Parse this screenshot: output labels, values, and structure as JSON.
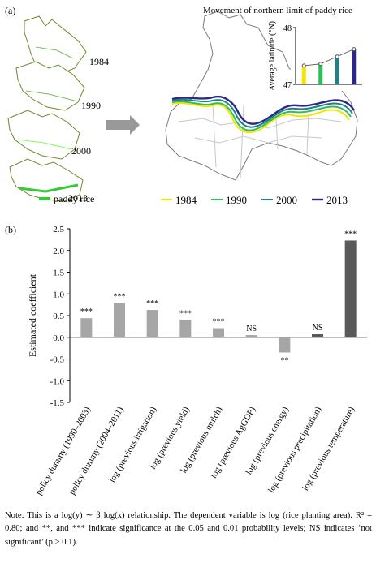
{
  "panel_a": {
    "label": "(a)",
    "inset_title": "Movement of northern limit of paddy rice",
    "small_maps": [
      "1984",
      "1990",
      "2000",
      "2013"
    ],
    "legend_paddy": "paddy rice",
    "legend_lines": [
      {
        "year": "1984",
        "color": "#f2e600"
      },
      {
        "year": "1990",
        "color": "#2fbf5a"
      },
      {
        "year": "2000",
        "color": "#1f7f8a"
      },
      {
        "year": "2013",
        "color": "#2a2a86"
      }
    ],
    "paddy_color": "#33cc33"
  },
  "panel_b": {
    "label": "(b)"
  },
  "chart_data": [
    {
      "type": "bar",
      "title": "Movement of northern limit of paddy rice",
      "ylabel": "Average latitude (°N)",
      "ylim": [
        47,
        48
      ],
      "yticks": [
        "47",
        "48"
      ],
      "categories": [
        "1984",
        "1990",
        "2000",
        "2013"
      ],
      "values": [
        47.33,
        47.36,
        47.49,
        47.62
      ],
      "colors": [
        "#f2e600",
        "#2fbf5a",
        "#1f7f8a",
        "#2a2a86"
      ],
      "line_overlay": true
    },
    {
      "type": "bar",
      "ylabel": "Estimated coefficient",
      "ylim": [
        -1.5,
        2.5
      ],
      "yticks": [
        "-1.5",
        "-1.0",
        "-0.5",
        "0.0",
        "0.5",
        "1.0",
        "1.5",
        "2.0",
        "2.5"
      ],
      "categories": [
        "policy dummy (1990–2003)",
        "policy dummy (2004–2011)",
        "log (previous irrigation)",
        "log (previous yield)",
        "log (previous mulch)",
        "log (previous AgGDP)",
        "log (previous energy)",
        "log (previous precipitation)",
        "log (previous temperature)"
      ],
      "values": [
        0.44,
        0.79,
        0.63,
        0.4,
        0.21,
        0.05,
        -0.35,
        0.07,
        2.23
      ],
      "significance": [
        "***",
        "***",
        "***",
        "***",
        "***",
        "NS",
        "**",
        "NS",
        "***"
      ],
      "colors": [
        "#a6a6a6",
        "#a6a6a6",
        "#a6a6a6",
        "#a6a6a6",
        "#a6a6a6",
        "#a6a6a6",
        "#a6a6a6",
        "#595959",
        "#595959"
      ]
    }
  ],
  "note": "Note: This is a log(y) ∼ β log(x) relationship. The dependent variable is log (rice planting area). R² = 0.80; and **, and *** indicate significance at the 0.05 and 0.01 probability levels; NS indicates ‘not significant’ (p > 0.1)."
}
